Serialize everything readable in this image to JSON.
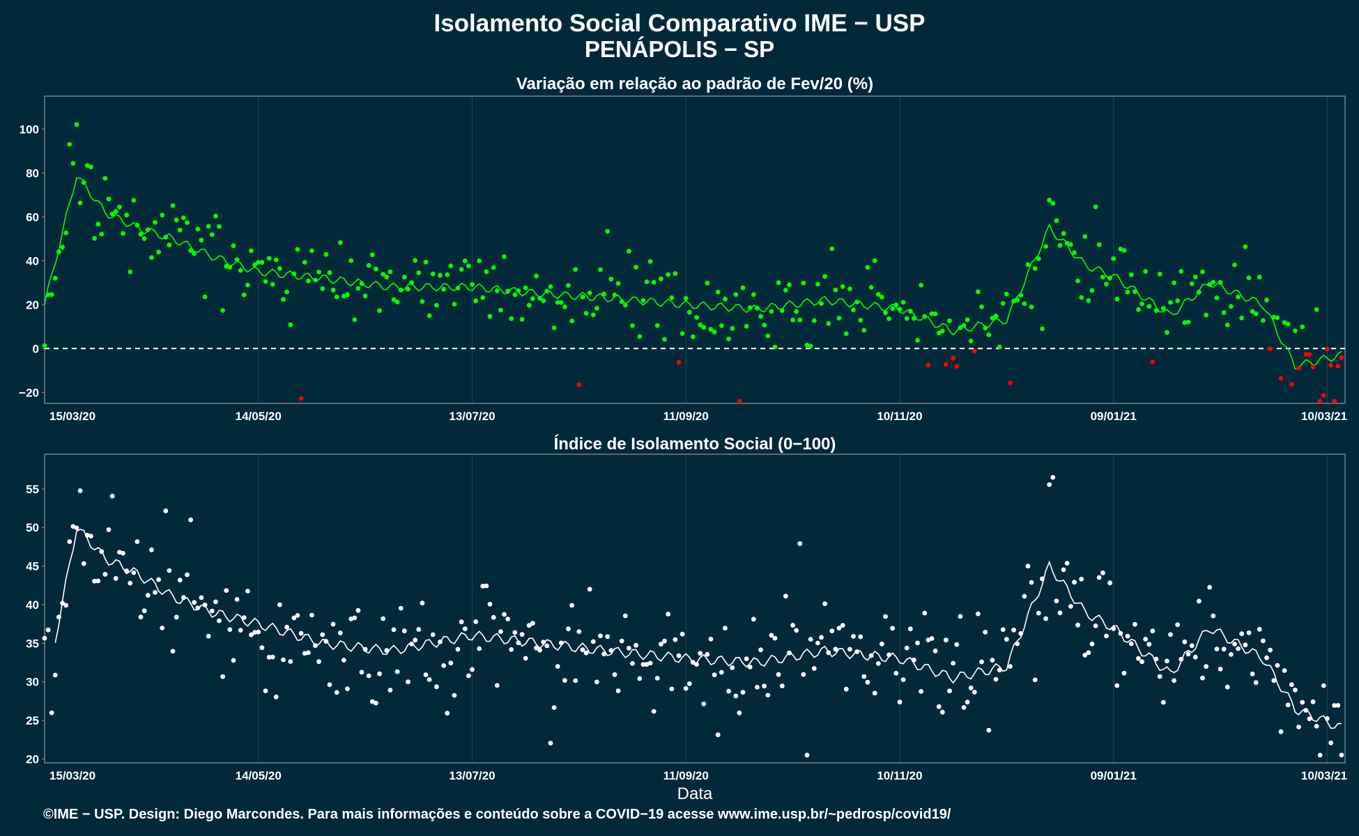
{
  "header": {
    "title": "Isolamento Social Comparativo IME − USP",
    "subtitle": "PENÁPOLIS − SP"
  },
  "footer": {
    "text": "©IME − USP. Design: Diego Marcondes. Para mais informações e conteúdo sobre a COVID−19 acesse www.ime.usp.br/~pedrosp/covid19/"
  },
  "colors": {
    "background": "#02293a",
    "positive": "#00ff00",
    "negative": "#ff0000",
    "index": "#ffffff"
  },
  "chart_data": [
    {
      "type": "scatter",
      "title": "Variação em relação ao padrão de Fev/20 (%)",
      "xlabel": "",
      "ylabel": "",
      "xlim": [
        "2020-03-15",
        "2021-03-15"
      ],
      "ylim": [
        -25,
        115
      ],
      "x_ticks": [
        "15/03/20",
        "14/05/20",
        "13/07/20",
        "11/09/20",
        "10/11/20",
        "09/01/21",
        "10/03/21"
      ],
      "y_ticks": [
        -20,
        0,
        20,
        40,
        60,
        80,
        100
      ],
      "reference_line": 0,
      "series": [
        {
          "x": [
            "2020-03-15",
            "2020-03-24",
            "2020-04-01",
            "2020-04-10",
            "2020-04-20",
            "2020-05-01",
            "2020-05-14",
            "2020-06-01",
            "2020-06-20",
            "2020-07-13",
            "2020-08-01",
            "2020-08-20",
            "2020-09-11",
            "2020-10-01",
            "2020-10-20",
            "2020-11-10",
            "2020-11-25",
            "2020-12-10",
            "2020-12-22",
            "2021-01-01",
            "2021-01-09",
            "2021-01-25",
            "2021-02-05",
            "2021-02-20",
            "2021-03-01",
            "2021-03-14"
          ],
          "values": [
            20,
            79,
            62,
            55,
            50,
            42,
            35,
            32,
            28,
            28,
            25,
            23,
            20,
            18,
            22,
            18,
            8,
            13,
            55,
            38,
            33,
            15,
            30,
            20,
            -8,
            -3
          ]
        }
      ]
    },
    {
      "type": "scatter",
      "title": "Índice de Isolamento Social (0−100)",
      "xlabel": "Data",
      "ylabel": "",
      "xlim": [
        "2020-03-15",
        "2021-03-15"
      ],
      "ylim": [
        19.5,
        59.5
      ],
      "x_ticks": [
        "15/03/20",
        "14/05/20",
        "13/07/20",
        "11/09/20",
        "10/11/20",
        "09/01/21",
        "10/03/21"
      ],
      "y_ticks": [
        20,
        25,
        30,
        35,
        40,
        45,
        50,
        55
      ],
      "series": [
        {
          "x": [
            "2020-03-18",
            "2020-03-24",
            "2020-04-01",
            "2020-04-10",
            "2020-04-20",
            "2020-05-01",
            "2020-05-14",
            "2020-06-01",
            "2020-06-20",
            "2020-07-13",
            "2020-08-01",
            "2020-08-20",
            "2020-09-11",
            "2020-10-01",
            "2020-10-20",
            "2020-11-10",
            "2020-11-25",
            "2020-12-10",
            "2020-12-22",
            "2021-01-01",
            "2021-01-09",
            "2021-01-25",
            "2021-02-05",
            "2021-02-20",
            "2021-03-01",
            "2021-03-14"
          ],
          "values": [
            35.5,
            50,
            46,
            44,
            41,
            39,
            37.5,
            35,
            34,
            36,
            35,
            34,
            33,
            32.5,
            34,
            33,
            30.5,
            32,
            45,
            39,
            37,
            31,
            37,
            33,
            26.5,
            24
          ]
        }
      ]
    }
  ]
}
